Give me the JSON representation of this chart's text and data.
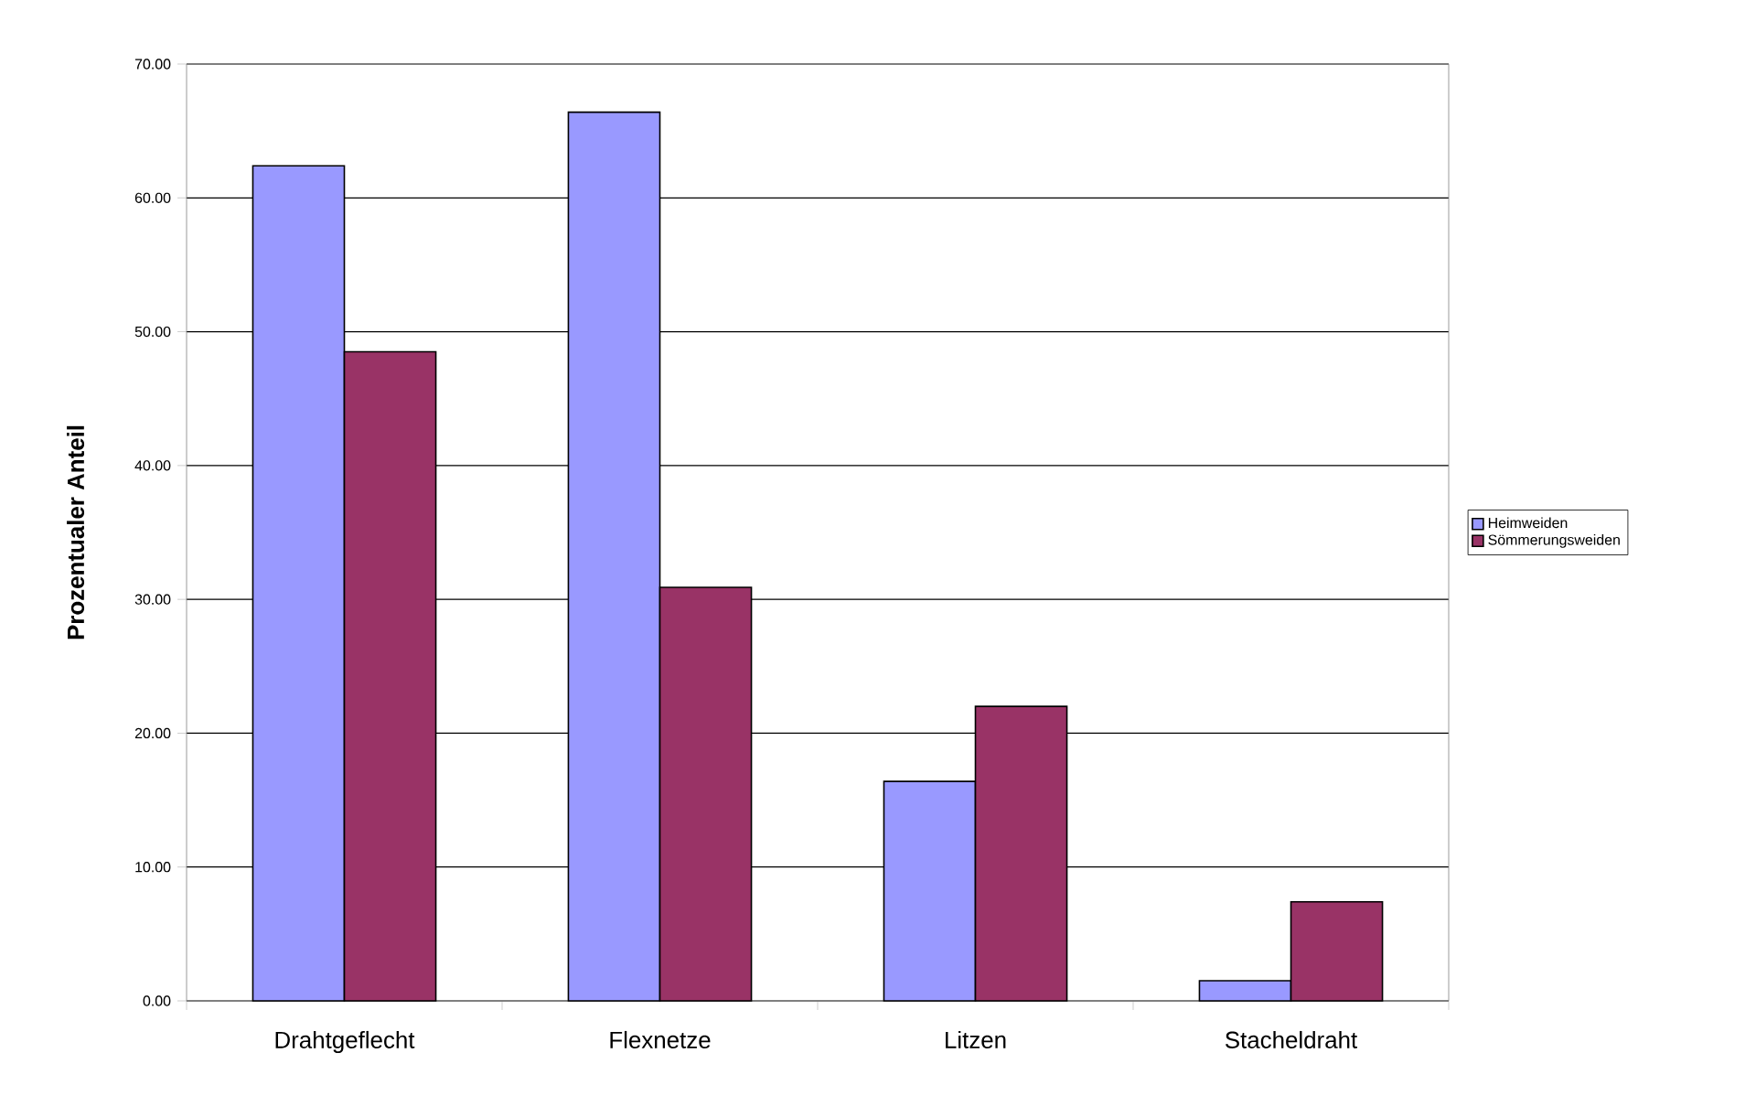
{
  "chart_data": {
    "type": "bar",
    "ylabel": "Prozentualer Anteil",
    "categories": [
      "Drahtgeflecht",
      "Flexnetze",
      "Litzen",
      "Stacheldraht"
    ],
    "series": [
      {
        "name": "Heimweiden",
        "color": "#9999ff",
        "values": [
          62.4,
          66.4,
          16.4,
          1.5
        ]
      },
      {
        "name": "Sömmerungsweiden",
        "color": "#993366",
        "values": [
          48.5,
          30.9,
          22.0,
          7.4
        ]
      }
    ],
    "ylim": [
      0,
      70
    ],
    "yticks": [
      {
        "value": 0,
        "label": "0.00"
      },
      {
        "value": 10,
        "label": "10.00"
      },
      {
        "value": 20,
        "label": "20.00"
      },
      {
        "value": 30,
        "label": "30.00"
      },
      {
        "value": 40,
        "label": "40.00"
      },
      {
        "value": 50,
        "label": "50.00"
      },
      {
        "value": 60,
        "label": "60.00"
      },
      {
        "value": 70,
        "label": "70.00"
      }
    ],
    "grid": "y",
    "legend": "right"
  }
}
